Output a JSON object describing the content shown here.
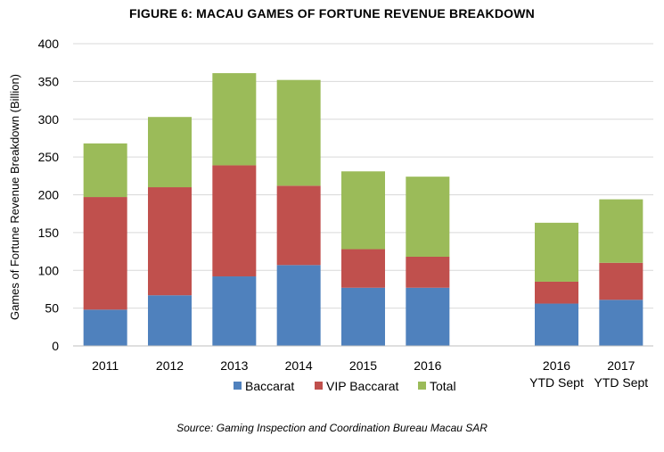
{
  "chart_data": {
    "type": "bar",
    "stacked": true,
    "title": "FIGURE 6: MACAU GAMES OF FORTUNE REVENUE BREAKDOWN",
    "ylabel": "Games of Fortune Revenue Breakdown (Billion)",
    "xlabel": "",
    "ylim": [
      0,
      400
    ],
    "yticks": [
      0,
      50,
      100,
      150,
      200,
      250,
      300,
      350,
      400
    ],
    "categories": [
      [
        "2011"
      ],
      [
        "2012"
      ],
      [
        "2013"
      ],
      [
        "2014"
      ],
      [
        "2015"
      ],
      [
        "2016"
      ],
      [],
      [
        "2016",
        "YTD Sept"
      ],
      [
        "2017",
        "YTD Sept"
      ]
    ],
    "series": [
      {
        "name": "Baccarat",
        "color": "#4F81BD",
        "values": [
          48,
          67,
          92,
          107,
          77,
          77,
          0,
          56,
          61
        ]
      },
      {
        "name": "VIP Baccarat",
        "color": "#C0504D",
        "values": [
          149,
          143,
          147,
          105,
          51,
          41,
          0,
          29,
          49
        ]
      },
      {
        "name": "Total",
        "color": "#9BBB59",
        "values": [
          71,
          93,
          122,
          140,
          103,
          106,
          0,
          78,
          84
        ]
      }
    ],
    "legend_position": "bottom",
    "grid": true
  },
  "source": "Source: Gaming Inspection and Coordination Bureau Macau SAR"
}
